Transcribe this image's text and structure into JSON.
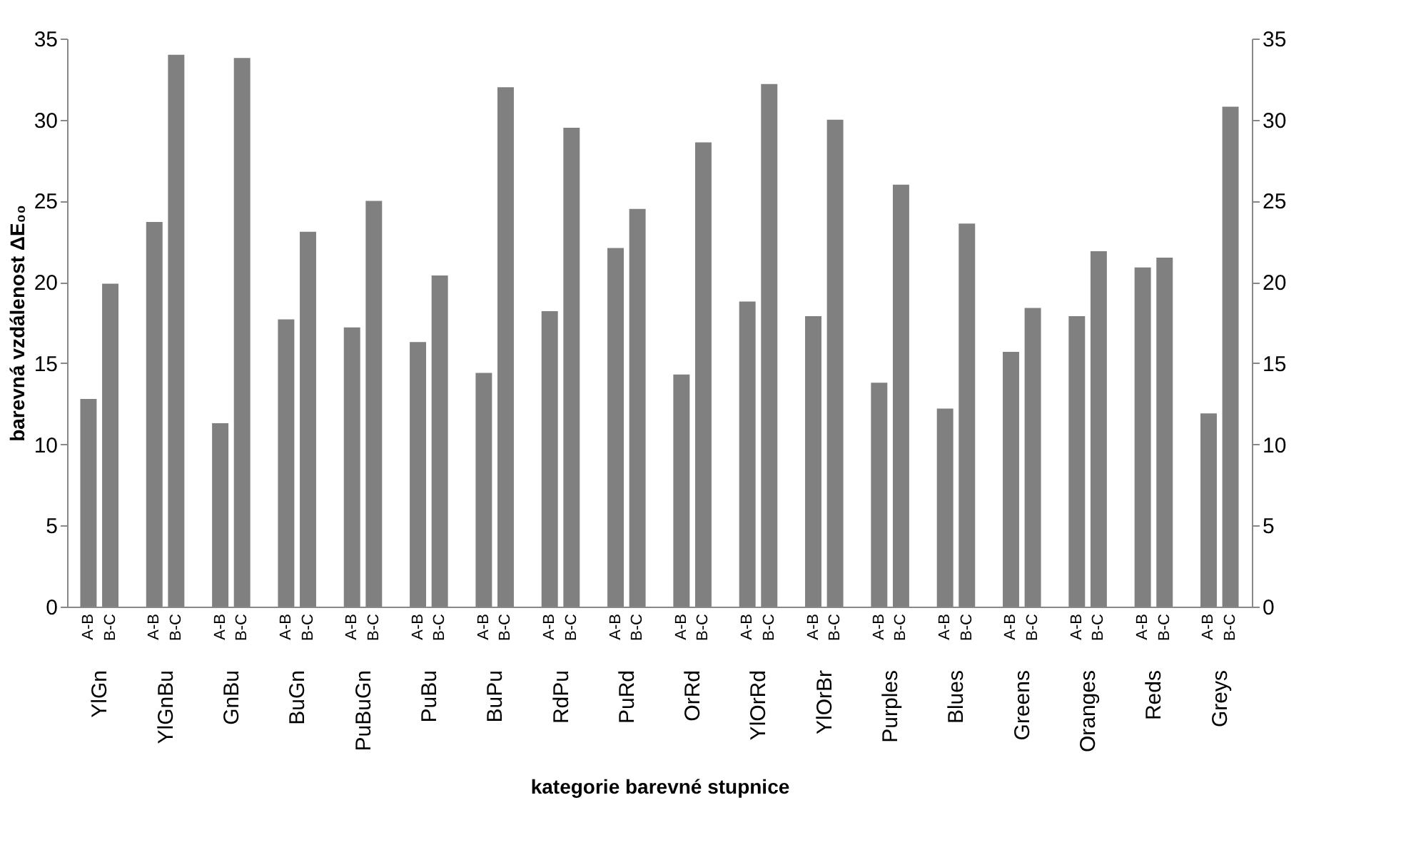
{
  "chart_data": {
    "type": "bar",
    "xlabel": "kategorie barevné stupnice",
    "ylabel": "barevná vzdálenost ΔE₀₀",
    "categories": [
      "YlGn",
      "YlGnBu",
      "GnBu",
      "BuGn",
      "PuBuGn",
      "PuBu",
      "BuPu",
      "RdPu",
      "PuRd",
      "OrRd",
      "YlOrRd",
      "YlOrBr",
      "Purples",
      "Blues",
      "Greens",
      "Oranges",
      "Reds",
      "Greys"
    ],
    "series": [
      {
        "name": "A-B",
        "color": "#808080",
        "values": [
          12.8,
          23.7,
          11.3,
          17.7,
          17.2,
          16.3,
          14.4,
          18.2,
          22.1,
          14.3,
          18.8,
          17.9,
          13.8,
          12.2,
          15.7,
          17.9,
          20.9,
          11.9
        ]
      },
      {
        "name": "B-C",
        "color": "#808080",
        "values": [
          19.9,
          34.0,
          33.8,
          23.1,
          25.0,
          20.4,
          32.0,
          29.5,
          24.5,
          28.6,
          32.2,
          30.0,
          26.0,
          23.6,
          18.4,
          21.9,
          21.5,
          30.8
        ]
      }
    ],
    "ylim": [
      0,
      35
    ],
    "yticks": [
      0,
      5,
      10,
      15,
      20,
      25,
      30,
      35
    ],
    "y2lim": [
      0,
      35
    ],
    "y2ticks": [
      0,
      5,
      10,
      15,
      20,
      25,
      30,
      35
    ],
    "grid": false,
    "legend": false
  }
}
